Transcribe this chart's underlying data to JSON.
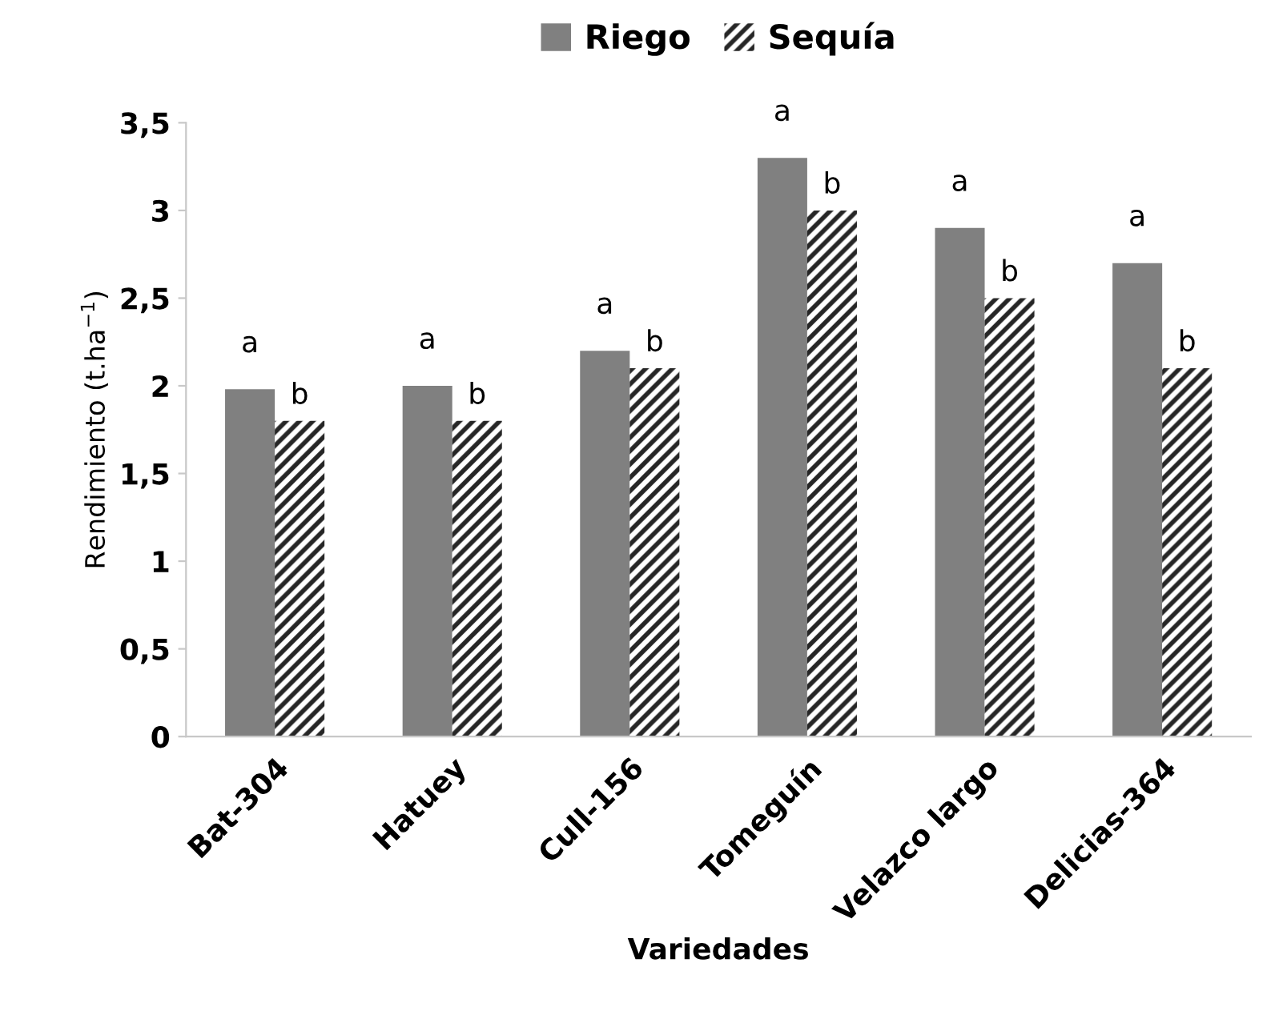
{
  "chart_data": {
    "type": "bar",
    "xlabel": "Variedades",
    "ylabel": "Rendimiento (t.ha$^{−1}$)",
    "categories": [
      "Bat-304",
      "Hatuey",
      "Cull-156",
      "Tomeguín",
      "Velazco largo",
      "Delicias-364"
    ],
    "series": [
      {
        "name": "Riego",
        "color": "#808080",
        "values": [
          1.98,
          2.0,
          2.2,
          3.3,
          2.9,
          2.7
        ],
        "value_labels": [
          "a",
          "a",
          "a",
          "a",
          "a",
          "a"
        ]
      },
      {
        "name": "Sequía",
        "color": "#262626",
        "values": [
          1.8,
          1.8,
          2.1,
          3.0,
          2.5,
          2.1
        ],
        "value_labels": [
          "b",
          "b",
          "b",
          "b",
          "b",
          "b"
        ]
      }
    ],
    "ylim": [
      0,
      3.5
    ],
    "yticks": [
      0,
      {
        "value": 0.5,
        "label": "0,5"
      },
      1,
      {
        "value": 1.5,
        "label": "1,5"
      },
      2,
      {
        "value": 2.5,
        "label": "2,5"
      },
      3,
      {
        "value": 3.5,
        "label": "3,5"
      }
    ],
    "grid": false,
    "legend": "top"
  }
}
